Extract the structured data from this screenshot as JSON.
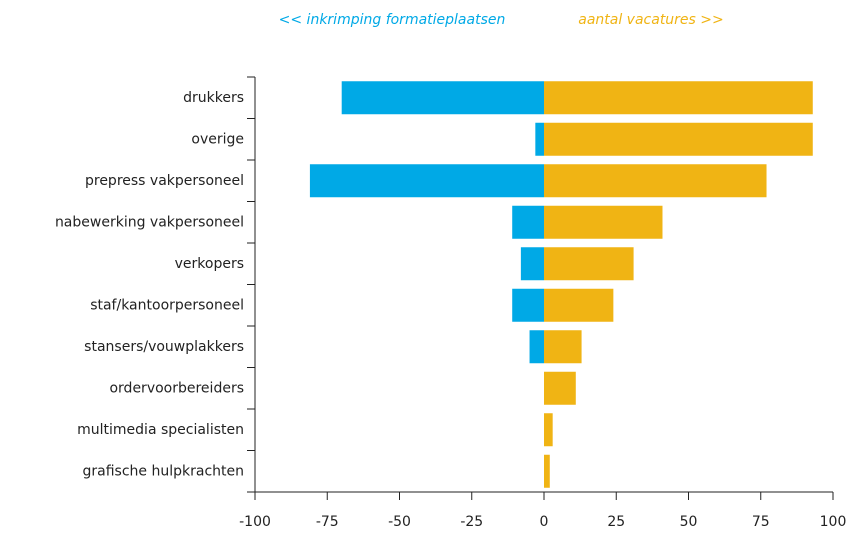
{
  "chart_data": {
    "type": "diverging-bar",
    "categories": [
      "drukkers",
      "overige",
      "prepress vakpersoneel",
      "nabewerking vakpersoneel",
      "verkopers",
      "staf/kantoorpersoneel",
      "stansers/vouwplakkers",
      "ordervoorbereiders",
      "multimedia specialisten",
      "grafische hulpkrachten"
    ],
    "series": [
      {
        "name": "<< inkrimping formatieplaatsen",
        "color": "#00a9e6",
        "values": [
          -70,
          -3,
          -81,
          -11,
          -8,
          -11,
          -5,
          0,
          0,
          0
        ]
      },
      {
        "name": "aantal vacatures >>",
        "color": "#f0b414",
        "values": [
          93,
          93,
          77,
          41,
          31,
          24,
          13,
          11,
          3,
          2
        ]
      }
    ],
    "xlim": [
      -100,
      100
    ],
    "xticks": [
      -100,
      -75,
      -50,
      -25,
      0,
      25,
      50,
      75,
      100
    ],
    "grid": false
  }
}
